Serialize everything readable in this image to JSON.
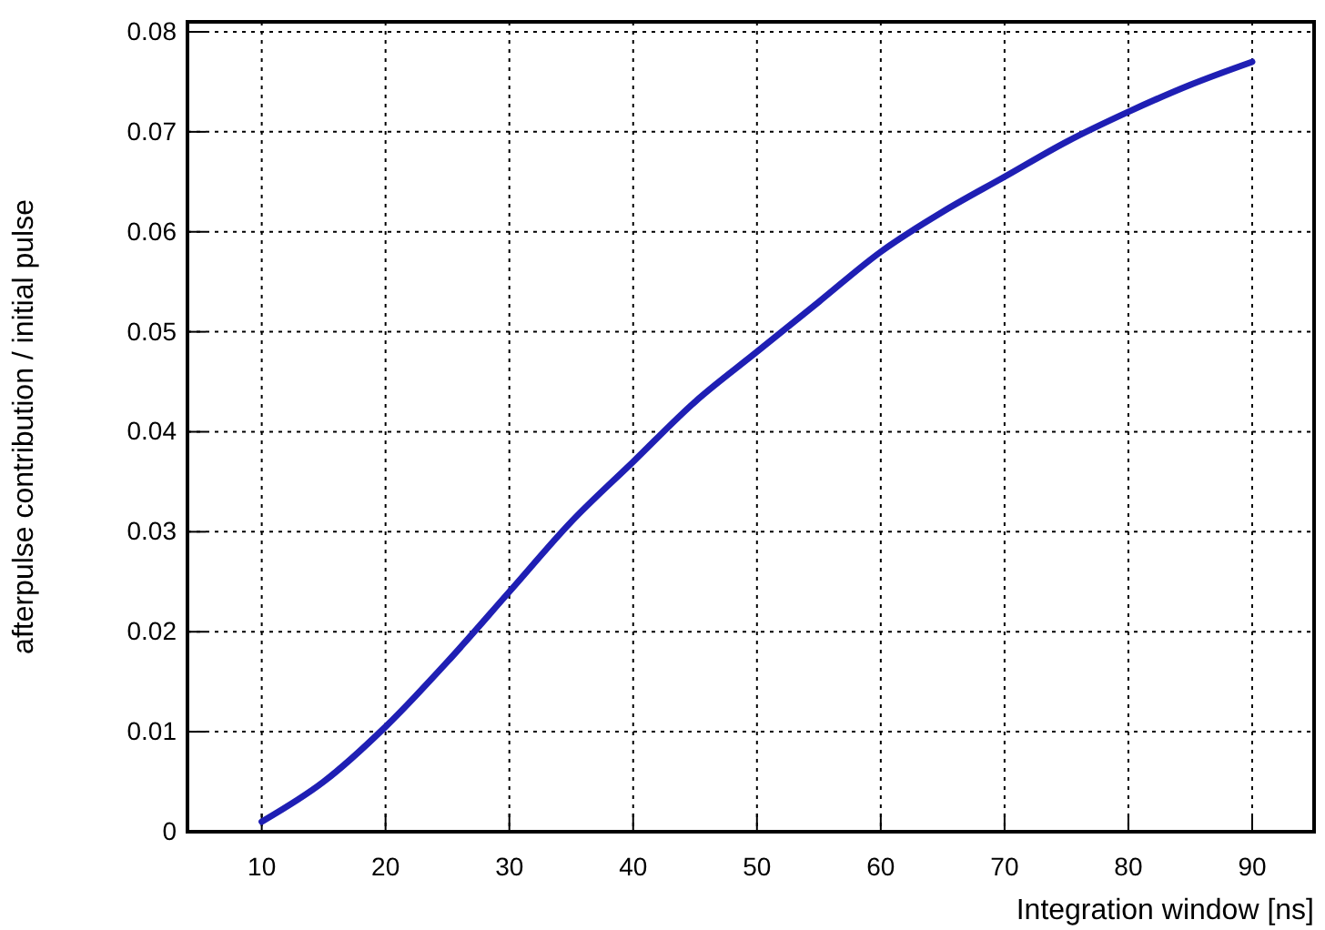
{
  "chart_data": {
    "type": "line",
    "xlabel": "Integration window [ns]",
    "ylabel": "afterpulse contribution / initial pulse",
    "x": [
      10,
      15,
      20,
      25,
      30,
      35,
      40,
      45,
      50,
      55,
      60,
      65,
      70,
      75,
      80,
      85,
      90
    ],
    "series": [
      {
        "color": "#1f1fb4",
        "values": [
          0.001,
          0.005,
          0.0105,
          0.017,
          0.024,
          0.031,
          0.037,
          0.043,
          0.048,
          0.053,
          0.058,
          0.062,
          0.0655,
          0.069,
          0.072,
          0.0747,
          0.077
        ]
      }
    ],
    "xlim": [
      4,
      95
    ],
    "ylim": [
      0,
      0.081
    ],
    "xticks": [
      10,
      20,
      30,
      40,
      50,
      60,
      70,
      80,
      90
    ],
    "yticks": [
      0,
      0.01,
      0.02,
      0.03,
      0.04,
      0.05,
      0.06,
      0.07,
      0.08
    ],
    "grid": true,
    "marker": "none",
    "line_style": "solid"
  }
}
